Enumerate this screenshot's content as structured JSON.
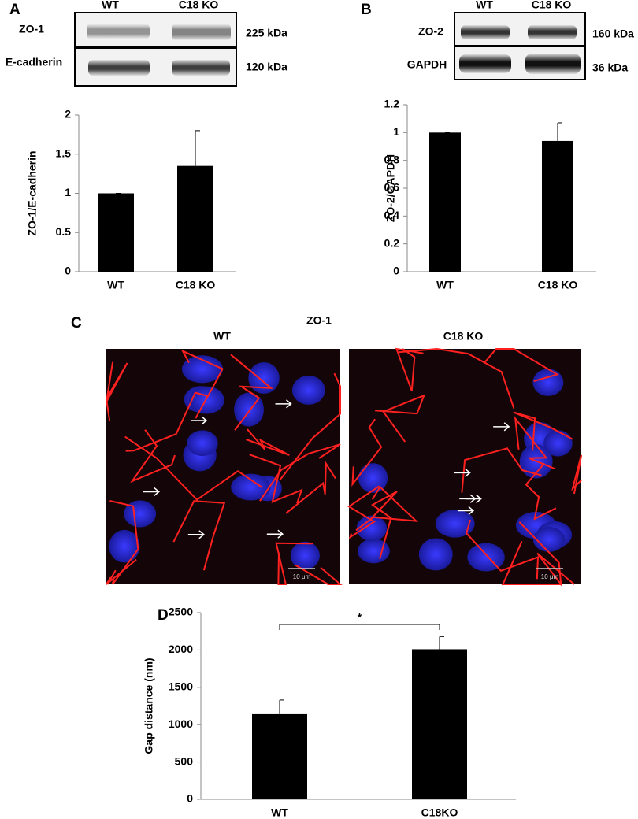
{
  "panel_labels": [
    "A",
    "B",
    "C",
    "D"
  ],
  "blots": [
    {
      "columns": [
        "WT",
        "C18 KO"
      ],
      "rows": [
        {
          "protein": "ZO-1",
          "size": "225 kDa"
        },
        {
          "protein": "E-cadherin",
          "size": "120 kDa"
        }
      ]
    },
    {
      "columns": [
        "WT",
        "C18 KO"
      ],
      "rows": [
        {
          "protein": "ZO-2",
          "size": "160 kDa"
        },
        {
          "protein": "GAPDH",
          "size": "36 kDa"
        }
      ]
    }
  ],
  "imaging": {
    "title": "ZO-1",
    "panels": [
      {
        "label": "WT",
        "scale_bar": "10 μm"
      },
      {
        "label": "C18 KO",
        "scale_bar": "10 μm"
      }
    ]
  },
  "chart_data": [
    {
      "type": "bar",
      "ylabel": "ZO-1/E-cadherin",
      "categories": [
        "WT",
        "C18 KO"
      ],
      "values": [
        1,
        1.35
      ],
      "errors": [
        0,
        0.45
      ],
      "color": "#000000",
      "ylim": [
        0,
        2
      ],
      "yticks": [
        0,
        0.5,
        1,
        1.5,
        2
      ]
    },
    {
      "type": "bar",
      "ylabel": "ZO-2/GAPDH",
      "categories": [
        "WT",
        "C18 KO"
      ],
      "values": [
        1,
        0.94
      ],
      "errors": [
        0,
        0.13
      ],
      "color": "#000000",
      "ylim": [
        0,
        1.2
      ],
      "yticks": [
        0,
        0.2,
        0.4,
        0.6,
        0.8,
        1,
        1.2
      ]
    },
    {
      "type": "bar",
      "ylabel": "Gap distance (nm)",
      "categories": [
        "WT",
        "C18KO"
      ],
      "values": [
        1140,
        2010
      ],
      "errors": [
        190,
        170
      ],
      "color": "#000000",
      "ylim": [
        0,
        2500
      ],
      "yticks": [
        0,
        500,
        1000,
        1500,
        2000,
        2500
      ],
      "annotation": "*"
    }
  ]
}
